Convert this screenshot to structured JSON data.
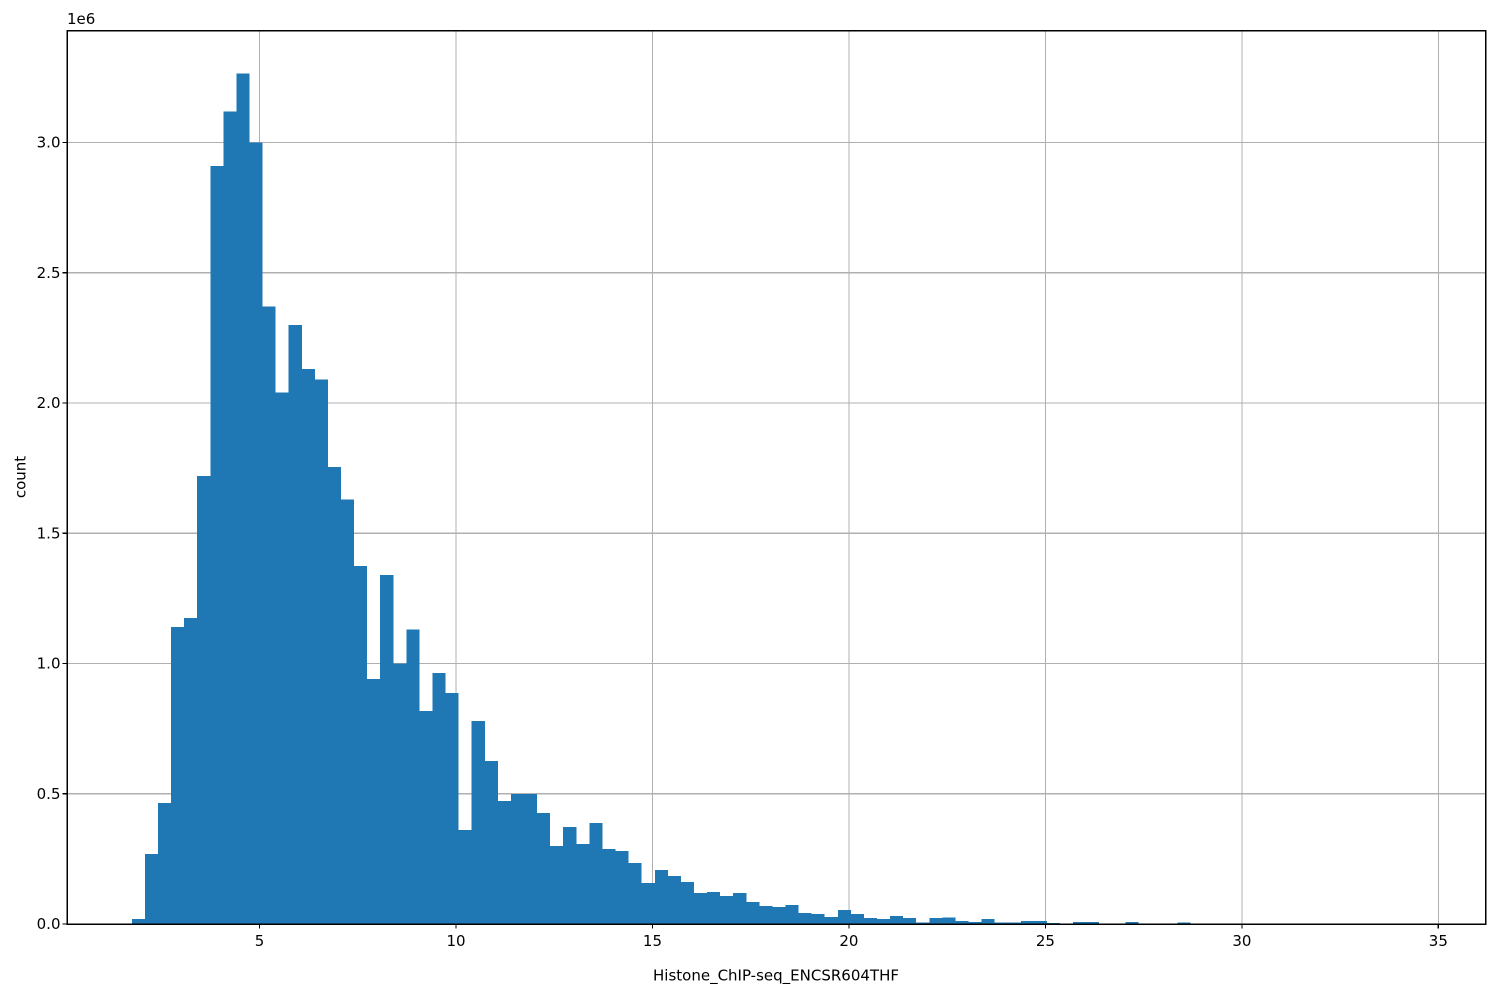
{
  "chart_data": {
    "type": "bar",
    "subtype": "histogram",
    "title": "",
    "xlabel": "Histone_ChIP-seq_ENCSR604THF",
    "ylabel": "count",
    "y_offset_text": "1e6",
    "legend": null,
    "grid": true,
    "xlim": [
      0.1,
      36.2
    ],
    "ylim": [
      0,
      3430000
    ],
    "x_tick_values": [
      5,
      10,
      15,
      20,
      25,
      30,
      35
    ],
    "x_tick_labels": [
      "5",
      "10",
      "15",
      "20",
      "25",
      "30",
      "35"
    ],
    "y_tick_values": [
      0,
      500000,
      1000000,
      1500000,
      2000000,
      2500000,
      3000000
    ],
    "y_tick_labels": [
      "0.0",
      "0.5",
      "1.0",
      "1.5",
      "2.0",
      "2.5",
      "3.0"
    ],
    "bin_start": 1.75,
    "bin_width": 0.3327,
    "counts": [
      19000,
      269000,
      464000,
      1140000,
      1174000,
      1720000,
      2910000,
      3120000,
      3265000,
      3000000,
      2370000,
      2040000,
      2300000,
      2130000,
      2090000,
      1755000,
      1630000,
      1375000,
      940000,
      1340000,
      1000000,
      1130000,
      817000,
      963000,
      887000,
      361000,
      779000,
      626000,
      472000,
      499000,
      499000,
      426000,
      299000,
      372000,
      307000,
      388000,
      288000,
      280000,
      234000,
      157000,
      207000,
      184000,
      161000,
      119000,
      123000,
      107000,
      119000,
      84000,
      69000,
      65000,
      73000,
      42000,
      38000,
      27000,
      54000,
      38000,
      23000,
      20000,
      30000,
      23000,
      6000,
      23000,
      24000,
      12000,
      8000,
      20000,
      5000,
      5000,
      12000,
      12000,
      3000,
      2000,
      8000,
      8000,
      2000,
      2000,
      7000,
      2000,
      1000,
      2000,
      6000
    ],
    "colors": {
      "bar": "#1f77b4",
      "grid": "#b0b0b0",
      "spine": "#000000",
      "text": "#000000",
      "background": "#ffffff"
    }
  }
}
